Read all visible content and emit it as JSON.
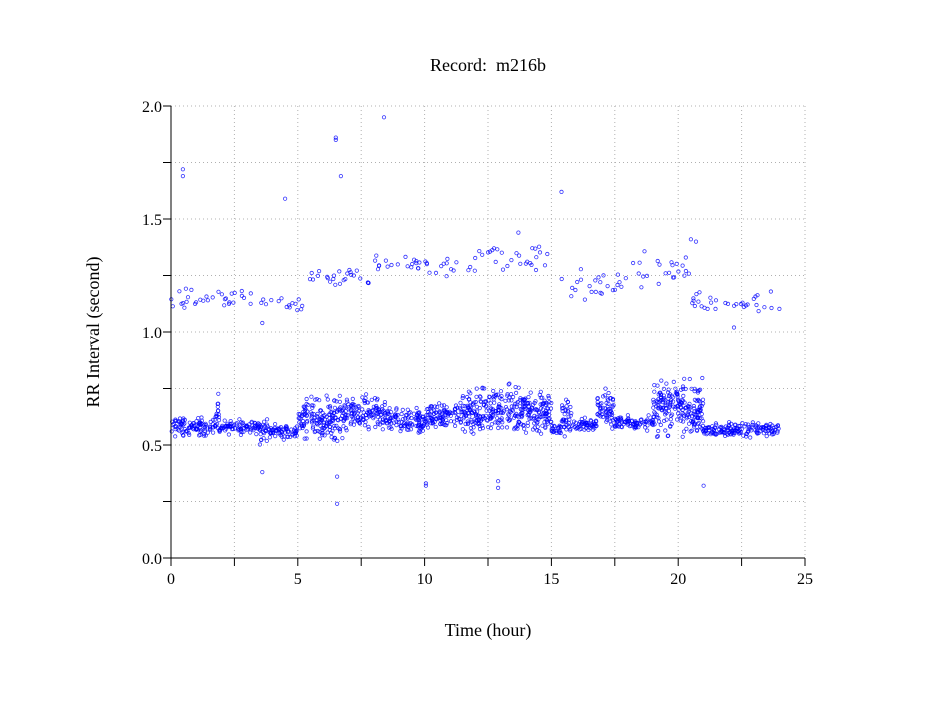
{
  "chart_data": {
    "type": "scatter",
    "title": "Record:  m216b",
    "xlabel": "Time (hour)",
    "ylabel": "RR Interval (second)",
    "xlim": [
      0,
      25
    ],
    "ylim": [
      0,
      2
    ],
    "xticks": [
      "0",
      "5",
      "10",
      "15",
      "20",
      "25"
    ],
    "xtick_values": [
      0,
      5,
      10,
      15,
      20,
      25
    ],
    "x_minor_ticks": [
      2.5,
      7.5,
      12.5,
      17.5,
      22.5
    ],
    "yticks": [
      "0.0",
      "0.5",
      "1.0",
      "1.5",
      "2.0"
    ],
    "ytick_values": [
      0,
      0.5,
      1.0,
      1.5,
      2.0
    ],
    "y_minor_ticks": [
      0.25,
      0.75,
      1.25,
      1.75
    ],
    "grid": true,
    "marker_color": "#0000ff",
    "main_band_segments": [
      {
        "start": 0,
        "end": 1.7,
        "center": 0.58,
        "spread": 0.04
      },
      {
        "start": 1.7,
        "end": 1.9,
        "center": 0.63,
        "spread": 0.11
      },
      {
        "start": 1.9,
        "end": 3.5,
        "center": 0.58,
        "spread": 0.03
      },
      {
        "start": 3.5,
        "end": 3.8,
        "center": 0.56,
        "spread": 0.06
      },
      {
        "start": 3.8,
        "end": 5.0,
        "center": 0.56,
        "spread": 0.03
      },
      {
        "start": 5.0,
        "end": 7.0,
        "center": 0.62,
        "spread": 0.09
      },
      {
        "start": 7.0,
        "end": 8.5,
        "center": 0.64,
        "spread": 0.07
      },
      {
        "start": 8.5,
        "end": 10.0,
        "center": 0.6,
        "spread": 0.06
      },
      {
        "start": 10.0,
        "end": 11.5,
        "center": 0.63,
        "spread": 0.06
      },
      {
        "start": 11.5,
        "end": 15.0,
        "center": 0.65,
        "spread": 0.1
      },
      {
        "start": 15.0,
        "end": 15.4,
        "center": 0.57,
        "spread": 0.03
      },
      {
        "start": 15.4,
        "end": 15.8,
        "center": 0.62,
        "spread": 0.09
      },
      {
        "start": 15.8,
        "end": 16.8,
        "center": 0.59,
        "spread": 0.03
      },
      {
        "start": 16.8,
        "end": 17.5,
        "center": 0.66,
        "spread": 0.08
      },
      {
        "start": 17.5,
        "end": 19.0,
        "center": 0.6,
        "spread": 0.03
      },
      {
        "start": 19.0,
        "end": 21.0,
        "center": 0.66,
        "spread": 0.12
      },
      {
        "start": 21.0,
        "end": 24.0,
        "center": 0.57,
        "spread": 0.03
      }
    ],
    "upper_band_segments": [
      {
        "start": 0,
        "end": 4.0,
        "center": 1.15,
        "spread": 0.04
      },
      {
        "start": 4.0,
        "end": 5.2,
        "center": 1.12,
        "spread": 0.03
      },
      {
        "start": 5.2,
        "end": 8.0,
        "center": 1.24,
        "spread": 0.06
      },
      {
        "start": 8.0,
        "end": 12.0,
        "center": 1.29,
        "spread": 0.04
      },
      {
        "start": 12.0,
        "end": 15.0,
        "center": 1.33,
        "spread": 0.06
      },
      {
        "start": 15.2,
        "end": 18.0,
        "center": 1.2,
        "spread": 0.06
      },
      {
        "start": 18.0,
        "end": 20.5,
        "center": 1.28,
        "spread": 0.07
      },
      {
        "start": 20.5,
        "end": 24.0,
        "center": 1.13,
        "spread": 0.04
      }
    ],
    "outliers": [
      {
        "x": 0.47,
        "y": 1.72
      },
      {
        "x": 0.47,
        "y": 1.69
      },
      {
        "x": 4.5,
        "y": 1.59
      },
      {
        "x": 6.5,
        "y": 1.85
      },
      {
        "x": 6.5,
        "y": 1.86
      },
      {
        "x": 6.7,
        "y": 1.69
      },
      {
        "x": 8.4,
        "y": 1.95
      },
      {
        "x": 15.4,
        "y": 1.62
      },
      {
        "x": 20.5,
        "y": 1.41
      },
      {
        "x": 20.7,
        "y": 1.4
      },
      {
        "x": 3.6,
        "y": 0.38
      },
      {
        "x": 6.55,
        "y": 0.36
      },
      {
        "x": 6.55,
        "y": 0.24
      },
      {
        "x": 10.05,
        "y": 0.33
      },
      {
        "x": 10.05,
        "y": 0.32
      },
      {
        "x": 12.9,
        "y": 0.34
      },
      {
        "x": 12.9,
        "y": 0.31
      },
      {
        "x": 21.0,
        "y": 0.32
      },
      {
        "x": 3.6,
        "y": 1.04
      },
      {
        "x": 22.2,
        "y": 1.02
      },
      {
        "x": 13.7,
        "y": 1.44
      }
    ]
  }
}
